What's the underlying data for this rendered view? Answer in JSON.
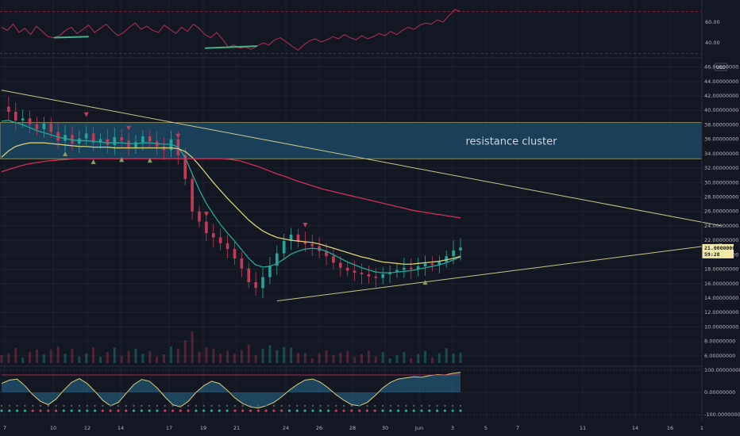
{
  "colors": {
    "background": "#131722",
    "grid": "#1e222d",
    "rsi_line": "#b2304f",
    "rsi_highlight": "#4caf8a",
    "ma_fast": "#26a69a",
    "ma_mid": "#d8cf7a",
    "ma_slow": "#d12f55",
    "trendline": "#c9c58a",
    "zone_fill": "#1e4d6b",
    "candle_up": "#26a69a",
    "candle_down": "#c23b57",
    "price_tag_bg": "#f0e9a8"
  },
  "chart_data": [
    {
      "id": "rsi_panel",
      "type": "line",
      "y_ticks": [
        "60.00",
        "40.00"
      ],
      "ylim": [
        28,
        78
      ],
      "upper_band": 70,
      "lower_band": 30,
      "x": [
        0,
        1,
        2,
        3,
        4,
        5,
        6,
        7,
        8,
        9,
        10,
        11,
        12,
        13,
        14,
        15,
        16,
        17,
        18,
        19,
        20,
        21,
        22,
        23,
        24,
        25,
        26,
        27,
        28,
        29,
        30,
        31,
        32,
        33,
        34,
        35,
        36,
        37,
        38,
        39,
        40,
        41,
        42,
        43,
        44,
        45,
        46,
        47,
        48,
        49,
        50,
        51,
        52,
        53,
        54,
        55,
        56,
        57,
        58,
        59,
        60,
        61,
        62,
        63,
        64,
        65,
        66,
        67,
        68,
        69,
        70,
        71,
        72,
        73,
        74,
        75,
        76,
        77,
        78,
        79
      ],
      "values": [
        55,
        52,
        58,
        50,
        54,
        48,
        56,
        51,
        46,
        45,
        47,
        52,
        55,
        49,
        53,
        57,
        50,
        54,
        58,
        52,
        47,
        50,
        55,
        59,
        53,
        56,
        52,
        50,
        57,
        53,
        49,
        55,
        51,
        58,
        54,
        48,
        45,
        50,
        44,
        36,
        38,
        35,
        36,
        34,
        37,
        40,
        38,
        43,
        45,
        41,
        37,
        33,
        38,
        42,
        44,
        41,
        43,
        46,
        44,
        48,
        45,
        43,
        47,
        44,
        46,
        49,
        47,
        51,
        48,
        52,
        55,
        53,
        57,
        59,
        58,
        62,
        60,
        66,
        72,
        70
      ]
    },
    {
      "id": "price_panel",
      "type": "line",
      "y_ticks": [
        "46.00000000",
        "44.00000000",
        "42.00000000",
        "40.00000000",
        "38.00000000",
        "36.00000000",
        "34.00000000",
        "32.00000000",
        "30.00000000",
        "28.00000000",
        "26.00000000",
        "24.00000000",
        "22.00000000",
        "20.00000000",
        "18.00000000",
        "16.00000000",
        "14.00000000",
        "12.00000000",
        "10.00000000",
        "8.00000000",
        "6.00000000"
      ],
      "ylim": [
        5,
        46.5
      ],
      "x_ticks": [
        "7",
        "10",
        "12",
        "14",
        "17",
        "19",
        "21",
        "24",
        "26",
        "28",
        "30",
        "Jun",
        "3",
        "5",
        "7",
        "11",
        "14",
        "16",
        "1"
      ],
      "currency_badge": "USD",
      "zone": {
        "label": "resistance cluster",
        "y_top": 38.3,
        "y_bottom": 33.3
      },
      "last_price": "21.00000000",
      "countdown": "59:28",
      "series": [
        {
          "id": "price",
          "values": [
            40.5,
            39.8,
            38.6,
            38.9,
            38.1,
            37.4,
            38.2,
            37.0,
            35.8,
            36.6,
            35.4,
            36.1,
            36.8,
            35.5,
            36.0,
            35.2,
            36.3,
            35.8,
            34.9,
            35.6,
            36.4,
            35.7,
            35.0,
            34.5,
            36.0,
            33.8,
            30.5,
            26.0,
            24.6,
            23.0,
            22.4,
            21.6,
            20.8,
            19.5,
            18.1,
            16.2,
            15.4,
            16.9,
            18.5,
            20.2,
            21.9,
            22.8,
            21.8,
            21.5,
            21.2,
            20.5,
            19.8,
            18.9,
            18.2,
            17.8,
            17.5,
            17.3,
            17.0,
            16.8,
            17.3,
            17.6,
            17.9,
            18.2,
            18.0,
            18.4,
            18.8,
            18.6,
            19.0,
            19.8,
            20.6,
            21.0
          ]
        },
        {
          "id": "ma_fast",
          "values": [
            38.5,
            38.6,
            38.3,
            38.0,
            37.6,
            37.2,
            36.9,
            36.6,
            36.3,
            36.1,
            35.9,
            35.8,
            35.8,
            35.7,
            35.6,
            35.5,
            35.5,
            35.5,
            35.4,
            35.4,
            35.5,
            35.5,
            35.4,
            35.3,
            35.3,
            34.9,
            33.5,
            31.2,
            29.0,
            27.1,
            25.6,
            24.2,
            23.0,
            21.9,
            20.7,
            19.5,
            18.6,
            18.3,
            18.4,
            18.8,
            19.4,
            20.1,
            20.5,
            20.8,
            20.9,
            20.8,
            20.5,
            20.0,
            19.5,
            19.0,
            18.6,
            18.2,
            17.9,
            17.6,
            17.5,
            17.5,
            17.6,
            17.7,
            17.8,
            18.0,
            18.2,
            18.4,
            18.6,
            18.9,
            19.3,
            19.7
          ]
        },
        {
          "id": "ma_mid",
          "values": [
            33.5,
            34.4,
            35.0,
            35.3,
            35.5,
            35.5,
            35.5,
            35.4,
            35.3,
            35.2,
            35.1,
            35.0,
            35.0,
            34.9,
            34.9,
            34.9,
            34.8,
            34.8,
            34.8,
            34.8,
            34.8,
            34.8,
            34.8,
            34.8,
            34.8,
            34.7,
            34.3,
            33.5,
            32.4,
            31.2,
            30.0,
            28.9,
            27.8,
            26.8,
            25.8,
            24.8,
            24.0,
            23.3,
            22.8,
            22.4,
            22.2,
            22.0,
            21.9,
            21.8,
            21.7,
            21.5,
            21.2,
            20.9,
            20.6,
            20.3,
            20.0,
            19.7,
            19.5,
            19.2,
            19.0,
            18.9,
            18.8,
            18.7,
            18.7,
            18.8,
            18.9,
            19.0,
            19.1,
            19.3,
            19.5,
            19.8
          ]
        },
        {
          "id": "ma_slow",
          "values": [
            31.5,
            31.9,
            32.3,
            32.6,
            32.8,
            33.0,
            33.1,
            33.2,
            33.3,
            33.3,
            33.3,
            33.3,
            33.3,
            33.3,
            33.3,
            33.3,
            33.3,
            33.3,
            33.3,
            33.3,
            33.3,
            33.3,
            33.3,
            33.3,
            33.3,
            33.2,
            33.0,
            32.6,
            32.2,
            31.7,
            31.2,
            30.8,
            30.3,
            29.9,
            29.5,
            29.1,
            28.8,
            28.5,
            28.2,
            27.9,
            27.6,
            27.3,
            27.0,
            26.7,
            26.4,
            26.1,
            25.9,
            25.7,
            25.5,
            25.3,
            25.1
          ]
        }
      ],
      "trendlines": [
        {
          "id": "descending-trendline",
          "from": [
            0,
            42.8
          ],
          "to": [
            102,
            24.0
          ]
        },
        {
          "id": "ascending-trendline",
          "from": [
            39,
            13.6
          ],
          "to": [
            102,
            21.5
          ]
        }
      ]
    },
    {
      "id": "oscillator_panel",
      "type": "area",
      "y_ticks": [
        "100.00000000",
        "0.00000000",
        "-100.00000000"
      ],
      "ylim": [
        -110,
        110
      ],
      "values": [
        40,
        55,
        60,
        30,
        -10,
        -40,
        -55,
        -30,
        10,
        45,
        62,
        40,
        5,
        -35,
        -60,
        -45,
        -5,
        35,
        58,
        50,
        20,
        -20,
        -55,
        -65,
        -40,
        0,
        30,
        50,
        40,
        10,
        -25,
        -50,
        -65,
        -70,
        -60,
        -45,
        -20,
        10,
        35,
        55,
        60,
        45,
        20,
        -10,
        -35,
        -55,
        -60,
        -45,
        -15,
        20,
        45,
        60,
        65,
        70,
        68,
        75,
        80,
        78,
        85,
        90
      ]
    }
  ]
}
